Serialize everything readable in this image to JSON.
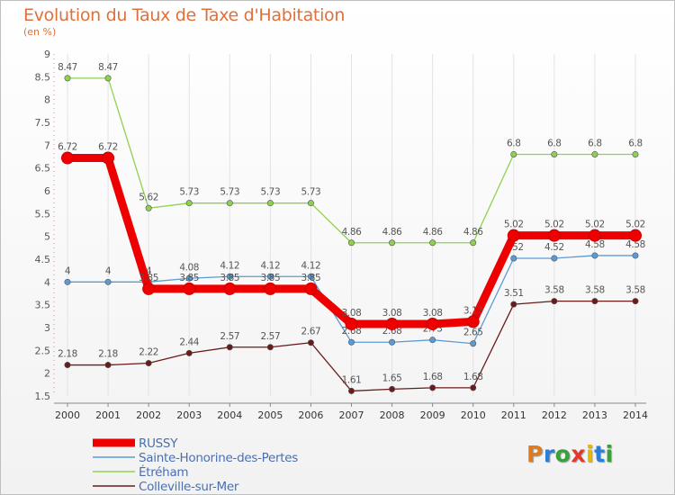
{
  "chart_data": {
    "type": "line",
    "title": "Evolution du Taux de Taxe d'Habitation",
    "subtitle": "(en %)",
    "x": [
      "2000",
      "2001",
      "2002",
      "2003",
      "2004",
      "2005",
      "2006",
      "2007",
      "2008",
      "2009",
      "2010",
      "2011",
      "2012",
      "2013",
      "2014"
    ],
    "yticks": [
      "1.5",
      "2",
      "2.5",
      "3",
      "3.5",
      "4",
      "4.5",
      "5",
      "5.5",
      "6",
      "6.5",
      "7",
      "7.5",
      "8",
      "8.5",
      "9"
    ],
    "ylim": [
      1.5,
      9
    ],
    "grid": "vertical",
    "legend_position": "bottom-left",
    "series": [
      {
        "name": "RUSSY",
        "color": "#ee0000",
        "values": [
          6.72,
          6.72,
          3.85,
          3.85,
          3.85,
          3.85,
          3.85,
          3.08,
          3.08,
          3.08,
          3.13,
          5.02,
          5.02,
          5.02,
          5.02
        ],
        "labels": [
          "6.72",
          "6.72",
          "3.85",
          "3.85",
          "3.85",
          "3.85",
          "3.85",
          "3.08",
          "3.08",
          "3.08",
          "3.13",
          "5.02",
          "5.02",
          "5.02",
          "5.02"
        ]
      },
      {
        "name": "Sainte-Honorine-des-Pertes",
        "color": "#5b9bd5",
        "values": [
          4,
          4,
          4,
          4.08,
          4.12,
          4.12,
          4.12,
          2.68,
          2.68,
          2.73,
          2.65,
          4.52,
          4.52,
          4.58,
          4.58
        ],
        "labels": [
          "4",
          "4",
          "4",
          "4.08",
          "4.12",
          "4.12",
          "4.12",
          "2.68",
          "2.68",
          "2.73",
          "2.65",
          "4.52",
          "4.52",
          "4.58",
          "4.58"
        ]
      },
      {
        "name": "Étréham",
        "color": "#8fd14f",
        "values": [
          8.47,
          8.47,
          5.62,
          5.73,
          5.73,
          5.73,
          5.73,
          4.86,
          4.86,
          4.86,
          4.86,
          6.8,
          6.8,
          6.8,
          6.8
        ],
        "labels": [
          "8.47",
          "8.47",
          "5.62",
          "5.73",
          "5.73",
          "5.73",
          "5.73",
          "4.86",
          "4.86",
          "4.86",
          "4.86",
          "6.8",
          "6.8",
          "6.8",
          "6.8"
        ]
      },
      {
        "name": "Colleville-sur-Mer",
        "color": "#6b1a1a",
        "values": [
          2.18,
          2.18,
          2.22,
          2.44,
          2.57,
          2.57,
          2.67,
          1.61,
          1.65,
          1.68,
          1.68,
          3.51,
          3.58,
          3.58,
          3.58
        ],
        "labels": [
          "2.18",
          "2.18",
          "2.22",
          "2.44",
          "2.57",
          "2.57",
          "2.67",
          "1.61",
          "1.65",
          "1.68",
          "1.68",
          "3.51",
          "3.58",
          "3.58",
          "3.58"
        ]
      }
    ]
  },
  "logo": {
    "letters": [
      "P",
      "r",
      "o",
      "x",
      "i",
      "t",
      "i"
    ],
    "colors": [
      "#e07a1f",
      "#2a7fd4",
      "#3aa13a",
      "#e23a2a",
      "#e6b800",
      "#2a7fd4",
      "#3aa13a"
    ]
  }
}
